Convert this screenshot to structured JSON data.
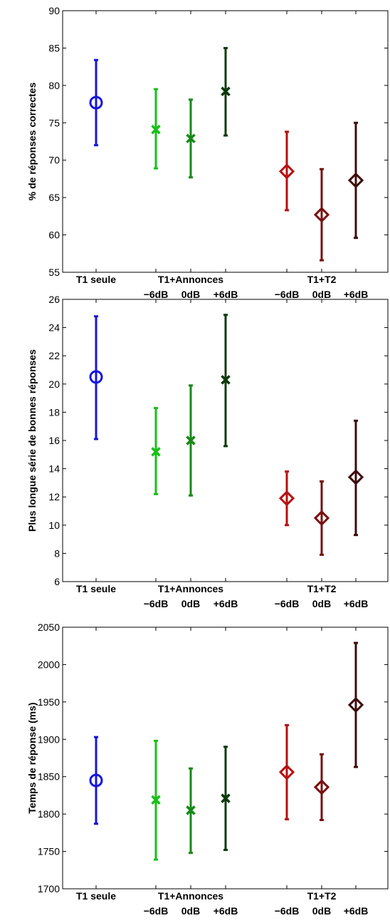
{
  "chart_data": [
    {
      "type": "errorbar",
      "ylabel": "% de réponses correctes",
      "ylim": [
        55,
        90
      ],
      "yticks": [
        55,
        60,
        65,
        70,
        75,
        80,
        85,
        90
      ],
      "groups": [
        {
          "label": "T1 seule",
          "sublabels": []
        },
        {
          "label": "T1+Annonces",
          "sublabels": [
            "−6dB",
            "0dB",
            "+6dB"
          ]
        },
        {
          "label": "T1+T2",
          "sublabels": [
            "−6dB",
            "0dB",
            "+6dB"
          ]
        }
      ],
      "points": [
        {
          "x": 1,
          "mean": 77.7,
          "low": 72.0,
          "high": 83.4,
          "marker": "circle",
          "color": "#1515e0"
        },
        {
          "x": 2,
          "mean": 74.1,
          "low": 68.9,
          "high": 79.5,
          "marker": "x",
          "color": "#19c019"
        },
        {
          "x": 3,
          "mean": 72.9,
          "low": 67.7,
          "high": 78.1,
          "marker": "x",
          "color": "#168a16"
        },
        {
          "x": 4,
          "mean": 79.2,
          "low": 73.3,
          "high": 85.0,
          "marker": "x",
          "color": "#0c3a0c"
        },
        {
          "x": 5,
          "mean": 68.5,
          "low": 63.3,
          "high": 73.8,
          "marker": "diamond",
          "color": "#b81010"
        },
        {
          "x": 6,
          "mean": 62.7,
          "low": 56.6,
          "high": 68.8,
          "marker": "diamond",
          "color": "#7a0f0f"
        },
        {
          "x": 7,
          "mean": 67.3,
          "low": 59.6,
          "high": 75.0,
          "marker": "diamond",
          "color": "#3e0c0c"
        }
      ]
    },
    {
      "type": "errorbar",
      "ylabel": "Plus longue série de bonnes réponses",
      "ylim": [
        6,
        26
      ],
      "yticks": [
        6,
        8,
        10,
        12,
        14,
        16,
        18,
        20,
        22,
        24,
        26
      ],
      "groups": [
        {
          "label": "T1 seule",
          "sublabels": []
        },
        {
          "label": "T1+Annonces",
          "sublabels": [
            "−6dB",
            "0dB",
            "+6dB"
          ]
        },
        {
          "label": "T1+T2",
          "sublabels": [
            "−6dB",
            "0dB",
            "+6dB"
          ]
        }
      ],
      "points": [
        {
          "x": 1,
          "mean": 20.5,
          "low": 16.1,
          "high": 24.8,
          "marker": "circle",
          "color": "#1515e0"
        },
        {
          "x": 2,
          "mean": 15.2,
          "low": 12.2,
          "high": 18.3,
          "marker": "x",
          "color": "#19c019"
        },
        {
          "x": 3,
          "mean": 16.0,
          "low": 12.1,
          "high": 19.9,
          "marker": "x",
          "color": "#168a16"
        },
        {
          "x": 4,
          "mean": 20.3,
          "low": 15.6,
          "high": 24.9,
          "marker": "x",
          "color": "#0c3a0c"
        },
        {
          "x": 5,
          "mean": 11.9,
          "low": 10.0,
          "high": 13.8,
          "marker": "diamond",
          "color": "#b81010"
        },
        {
          "x": 6,
          "mean": 10.5,
          "low": 7.9,
          "high": 13.1,
          "marker": "diamond",
          "color": "#7a0f0f"
        },
        {
          "x": 7,
          "mean": 13.4,
          "low": 9.3,
          "high": 17.4,
          "marker": "diamond",
          "color": "#3e0c0c"
        }
      ]
    },
    {
      "type": "errorbar",
      "ylabel": "Temps de réponse (ms)",
      "ylim": [
        1700,
        2050
      ],
      "yticks": [
        1700,
        1750,
        1800,
        1850,
        1900,
        1950,
        2000,
        2050
      ],
      "groups": [
        {
          "label": "T1 seule",
          "sublabels": []
        },
        {
          "label": "T1+Annonces",
          "sublabels": [
            "−6dB",
            "0dB",
            "+6dB"
          ]
        },
        {
          "label": "T1+T2",
          "sublabels": [
            "−6dB",
            "0dB",
            "+6dB"
          ]
        }
      ],
      "points": [
        {
          "x": 1,
          "mean": 1845,
          "low": 1787,
          "high": 1903,
          "marker": "circle",
          "color": "#1515e0"
        },
        {
          "x": 2,
          "mean": 1819,
          "low": 1739,
          "high": 1898,
          "marker": "x",
          "color": "#19c019"
        },
        {
          "x": 3,
          "mean": 1805,
          "low": 1748,
          "high": 1861,
          "marker": "x",
          "color": "#168a16"
        },
        {
          "x": 4,
          "mean": 1821,
          "low": 1752,
          "high": 1890,
          "marker": "x",
          "color": "#0c3a0c"
        },
        {
          "x": 5,
          "mean": 1856,
          "low": 1793,
          "high": 1919,
          "marker": "diamond",
          "color": "#b81010"
        },
        {
          "x": 6,
          "mean": 1836,
          "low": 1792,
          "high": 1880,
          "marker": "diamond",
          "color": "#7a0f0f"
        },
        {
          "x": 7,
          "mean": 1946,
          "low": 1863,
          "high": 2029,
          "marker": "diamond",
          "color": "#3e0c0c"
        }
      ]
    }
  ]
}
